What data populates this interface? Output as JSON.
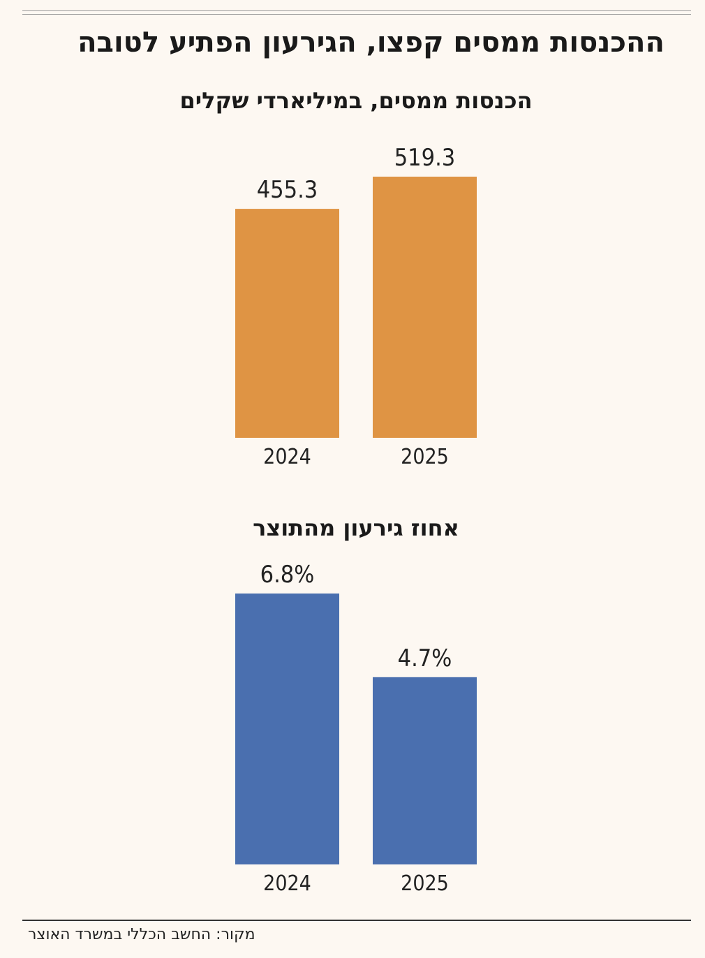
{
  "headline": "ההכנסות ממסים קפצו, הגירעון הפתיע לטובה",
  "source": "מקור: החשב הכללי במשרד האוצר",
  "chart_data": [
    {
      "type": "bar",
      "title": "הכנסות ממסים, במיליארדי שקלים",
      "categories": [
        "2024",
        "2025"
      ],
      "values": [
        455.3,
        519.3
      ],
      "labels": [
        "455.3",
        "519.3"
      ],
      "color": "#df9444",
      "ylim": [
        0,
        519.3
      ]
    },
    {
      "type": "bar",
      "title": "אחוז גירעון מהתוצר",
      "categories": [
        "2024",
        "2025"
      ],
      "values": [
        6.8,
        4.7
      ],
      "labels": [
        "6.8%",
        "4.7%"
      ],
      "color": "#4a6faf",
      "ylim": [
        0,
        6.8
      ]
    }
  ]
}
